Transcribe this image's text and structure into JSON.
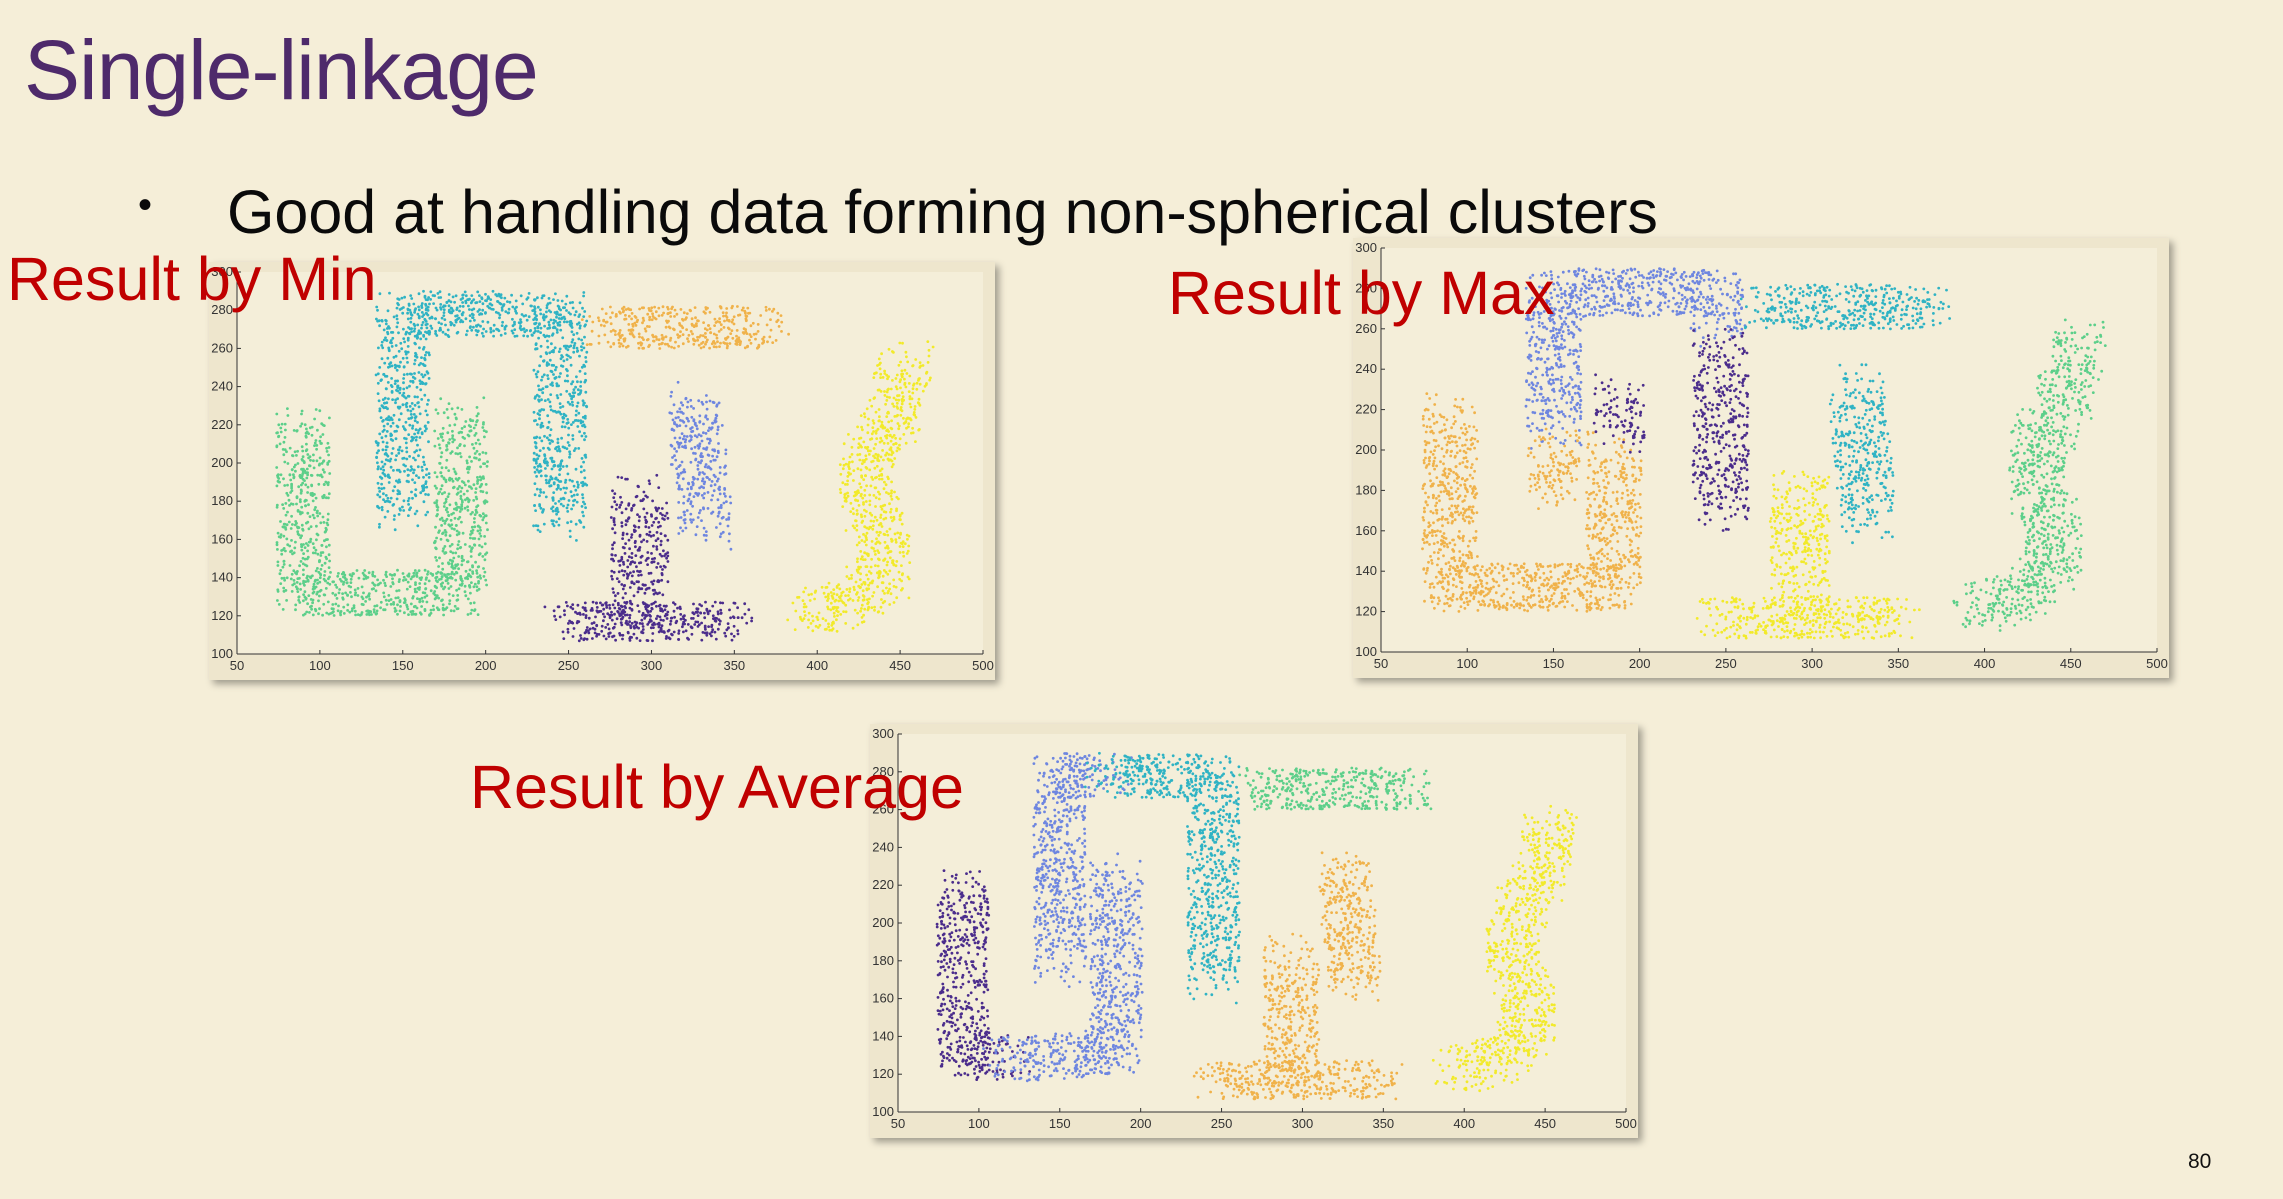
{
  "slide": {
    "title": "Single-linkage",
    "bullet": "Good at handling data forming non-spherical clusters",
    "page_number": "80"
  },
  "labels": {
    "min": "Result by Min",
    "max": "Result by Max",
    "average": "Result by Average"
  },
  "colors": {
    "title": "#4e2a6b",
    "label": "#c00000",
    "teal": "#2fb3c4",
    "green": "#5ccf8a",
    "orange": "#f0b24a",
    "blue": "#6e86e0",
    "purple": "#4b2d8c",
    "yellow": "#f2ea2a"
  },
  "chart_data": [
    {
      "type": "scatter",
      "title": "Result by Min",
      "xlim": [
        50,
        500
      ],
      "ylim": [
        100,
        300
      ],
      "xticks": [
        50,
        100,
        150,
        200,
        250,
        300,
        350,
        400,
        450,
        500
      ],
      "yticks": [
        100,
        120,
        140,
        160,
        180,
        200,
        220,
        240,
        260,
        280,
        300
      ],
      "series": [
        {
          "color": "teal",
          "strokes": [
            {
              "pts": [
                [
                  150,
                  175
                ],
                [
                  150,
                  278
                ],
                [
                  245,
                  278
                ],
                [
                  245,
                  168
                ]
              ],
              "w": 28
            }
          ]
        },
        {
          "color": "green",
          "strokes": [
            {
              "pts": [
                [
                  90,
                  218
                ],
                [
                  90,
                  132
                ],
                [
                  185,
                  132
                ],
                [
                  185,
                  225
                ]
              ],
              "w": 28
            }
          ]
        },
        {
          "color": "orange",
          "strokes": [
            {
              "pts": [
                [
                  270,
                  271
                ],
                [
                  370,
                  271
                ]
              ],
              "w": 26
            }
          ]
        },
        {
          "color": "blue",
          "strokes": [
            {
              "pts": [
                [
                  325,
                  232
                ],
                [
                  330,
                  195
                ],
                [
                  333,
                  165
                ]
              ],
              "w": 28
            }
          ]
        },
        {
          "color": "purple",
          "strokes": [
            {
              "pts": [
                [
                  245,
                  117
                ],
                [
                  350,
                  117
                ]
              ],
              "w": 24
            },
            {
              "pts": [
                [
                  293,
                  125
                ],
                [
                  293,
                  183
                ]
              ],
              "w": 30
            }
          ]
        },
        {
          "color": "yellow",
          "strokes": [
            {
              "pts": [
                [
                  455,
                  253
                ],
                [
                  445,
                  222
                ],
                [
                  430,
                  200
                ],
                [
                  430,
                  180
                ],
                [
                  440,
                  160
                ],
                [
                  440,
                  140
                ],
                [
                  420,
                  128
                ],
                [
                  395,
                  122
                ]
              ],
              "w": 28
            }
          ]
        }
      ]
    },
    {
      "type": "scatter",
      "title": "Result by Max",
      "xlim": [
        50,
        500
      ],
      "ylim": [
        100,
        300
      ],
      "xticks": [
        50,
        100,
        150,
        200,
        250,
        300,
        350,
        400,
        450,
        500
      ],
      "yticks": [
        100,
        120,
        140,
        160,
        180,
        200,
        220,
        240,
        260,
        280,
        300
      ],
      "series": [
        {
          "color": "blue",
          "strokes": [
            {
              "pts": [
                [
                  150,
                  210
                ],
                [
                  150,
                  278
                ],
                [
                  245,
                  278
                ],
                [
                  245,
                  262
                ]
              ],
              "w": 28
            }
          ]
        },
        {
          "color": "orange",
          "strokes": [
            {
              "pts": [
                [
                  90,
                  218
                ],
                [
                  90,
                  132
                ],
                [
                  185,
                  132
                ],
                [
                  185,
                  200
                ]
              ],
              "w": 28
            },
            {
              "pts": [
                [
                  150,
                  205
                ],
                [
                  150,
                  180
                ]
              ],
              "w": 26
            }
          ]
        },
        {
          "color": "purple",
          "strokes": [
            {
              "pts": [
                [
                  188,
                  228
                ],
                [
                  188,
                  208
                ]
              ],
              "w": 26
            },
            {
              "pts": [
                [
                  247,
                  250
                ],
                [
                  247,
                  170
                ]
              ],
              "w": 28
            }
          ]
        },
        {
          "color": "teal",
          "strokes": [
            {
              "pts": [
                [
                  270,
                  271
                ],
                [
                  370,
                  271
                ]
              ],
              "w": 26
            },
            {
              "pts": [
                [
                  325,
                  232
                ],
                [
                  330,
                  195
                ],
                [
                  333,
                  165
                ]
              ],
              "w": 28
            }
          ]
        },
        {
          "color": "yellow",
          "strokes": [
            {
              "pts": [
                [
                  245,
                  117
                ],
                [
                  350,
                  117
                ]
              ],
              "w": 24
            },
            {
              "pts": [
                [
                  293,
                  125
                ],
                [
                  293,
                  183
                ]
              ],
              "w": 30
            }
          ]
        },
        {
          "color": "green",
          "strokes": [
            {
              "pts": [
                [
                  455,
                  253
                ],
                [
                  445,
                  222
                ],
                [
                  430,
                  200
                ],
                [
                  430,
                  180
                ],
                [
                  440,
                  160
                ],
                [
                  440,
                  140
                ],
                [
                  420,
                  128
                ],
                [
                  395,
                  122
                ]
              ],
              "w": 28
            }
          ]
        }
      ]
    },
    {
      "type": "scatter",
      "title": "Result by Average",
      "xlim": [
        50,
        500
      ],
      "ylim": [
        100,
        300
      ],
      "xticks": [
        50,
        100,
        150,
        200,
        250,
        300,
        350,
        400,
        450,
        500
      ],
      "yticks": [
        100,
        120,
        140,
        160,
        180,
        200,
        220,
        240,
        260,
        280,
        300
      ],
      "series": [
        {
          "color": "purple",
          "strokes": [
            {
              "pts": [
                [
                  90,
                  218
                ],
                [
                  90,
                  132
                ],
                [
                  118,
                  128
                ]
              ],
              "w": 28
            }
          ]
        },
        {
          "color": "blue",
          "strokes": [
            {
              "pts": [
                [
                  150,
                  175
                ],
                [
                  150,
                  278
                ],
                [
                  180,
                  278
                ]
              ],
              "w": 28
            },
            {
              "pts": [
                [
                  118,
                  128
                ],
                [
                  185,
                  132
                ],
                [
                  185,
                  225
                ]
              ],
              "w": 28
            }
          ]
        },
        {
          "color": "teal",
          "strokes": [
            {
              "pts": [
                [
                  180,
                  278
                ],
                [
                  245,
                  278
                ],
                [
                  245,
                  168
                ]
              ],
              "w": 28
            }
          ]
        },
        {
          "color": "green",
          "strokes": [
            {
              "pts": [
                [
                  270,
                  271
                ],
                [
                  370,
                  271
                ]
              ],
              "w": 26
            }
          ]
        },
        {
          "color": "orange",
          "strokes": [
            {
              "pts": [
                [
                  245,
                  117
                ],
                [
                  350,
                  117
                ]
              ],
              "w": 24
            },
            {
              "pts": [
                [
                  293,
                  125
                ],
                [
                  293,
                  183
                ]
              ],
              "w": 30
            },
            {
              "pts": [
                [
                  325,
                  232
                ],
                [
                  330,
                  195
                ],
                [
                  333,
                  165
                ]
              ],
              "w": 28
            }
          ]
        },
        {
          "color": "yellow",
          "strokes": [
            {
              "pts": [
                [
                  455,
                  253
                ],
                [
                  445,
                  222
                ],
                [
                  430,
                  200
                ],
                [
                  430,
                  180
                ],
                [
                  440,
                  160
                ],
                [
                  440,
                  140
                ],
                [
                  420,
                  128
                ],
                [
                  395,
                  122
                ]
              ],
              "w": 28
            }
          ]
        }
      ]
    }
  ]
}
